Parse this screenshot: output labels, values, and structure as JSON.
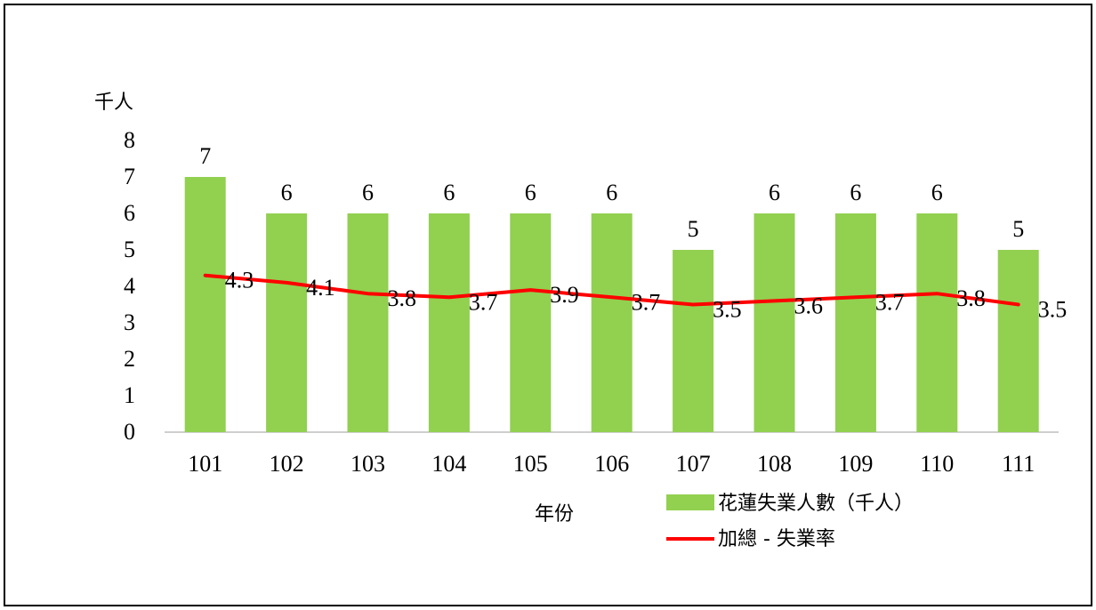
{
  "chart_data": {
    "type": "bar",
    "ylabel": "千人",
    "xlabel": "年份",
    "categories": [
      "101",
      "102",
      "103",
      "104",
      "105",
      "106",
      "107",
      "108",
      "109",
      "110",
      "111"
    ],
    "ylim": [
      0,
      8
    ],
    "yticks": [
      "0",
      "1",
      "2",
      "3",
      "4",
      "5",
      "6",
      "7",
      "8"
    ],
    "grid": false,
    "legend_position": "bottom-right",
    "series": [
      {
        "name": "花蓮失業人數（千人）",
        "type": "bar",
        "color": "#92d050",
        "values": [
          7,
          6,
          6,
          6,
          6,
          6,
          5,
          6,
          6,
          6,
          5
        ],
        "labels": [
          "7",
          "6",
          "6",
          "6",
          "6",
          "6",
          "5",
          "6",
          "6",
          "6",
          "5"
        ]
      },
      {
        "name": "加總 - 失業率",
        "type": "line",
        "color": "#ff0000",
        "values": [
          4.3,
          4.1,
          3.8,
          3.7,
          3.9,
          3.7,
          3.5,
          3.6,
          3.7,
          3.8,
          3.5
        ],
        "labels": [
          "4.3",
          "4.1",
          "3.8",
          "3.7",
          "3.9",
          "3.7",
          "3.5",
          "3.6",
          "3.7",
          "3.8",
          "3.5"
        ]
      }
    ]
  }
}
